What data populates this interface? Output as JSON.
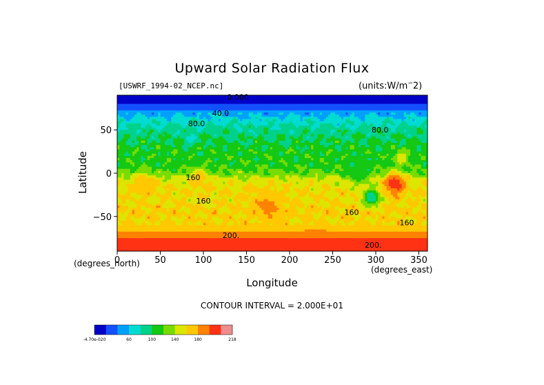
{
  "chart_data": {
    "type": "heatmap",
    "title": "Upward Solar Radiation Flux",
    "file_label": "[USWRF_1994-02_NCEP.nc]",
    "units_label": "(units:W/m^-2)",
    "xlabel": "Longitude",
    "ylabel": "Latitude",
    "x_unit_label": "(degrees_east)",
    "y_unit_label": "(degrees_north)",
    "xlim": [
      0,
      360
    ],
    "ylim": [
      -90,
      90
    ],
    "x_ticks": [
      0,
      50,
      100,
      150,
      200,
      250,
      300,
      350
    ],
    "y_ticks": [
      50,
      0,
      -50
    ],
    "x_tick_labels": [
      "0",
      "50",
      "100",
      "150",
      "200",
      "250",
      "300",
      "350"
    ],
    "y_tick_labels": [
      "50",
      "0",
      "−50"
    ],
    "contour_interval_text": "CONTOUR INTERVAL = 2.000E+01",
    "contour_labels": [
      {
        "text": "0.000",
        "lon": 140,
        "lat": 85
      },
      {
        "text": "40.0",
        "lon": 120,
        "lat": 66
      },
      {
        "text": "80.0",
        "lon": 92,
        "lat": 54
      },
      {
        "text": "80.0",
        "lon": 305,
        "lat": 47
      },
      {
        "text": "160",
        "lon": 88,
        "lat": -8
      },
      {
        "text": "160",
        "lon": 272,
        "lat": -48
      },
      {
        "text": "160",
        "lon": 336,
        "lat": -60
      },
      {
        "text": "160",
        "lon": 100,
        "lat": -35
      },
      {
        "text": "200.",
        "lon": 132,
        "lat": -75
      },
      {
        "text": "200.",
        "lon": 297,
        "lat": -86
      }
    ],
    "levels": [
      0,
      20,
      40,
      60,
      80,
      100,
      120,
      140,
      160,
      180,
      200,
      218
    ],
    "colorbar": {
      "tick_labels": [
        "-4.70e-020",
        "60",
        "100",
        "140",
        "180",
        "218"
      ],
      "colors": [
        "#0000c8",
        "#1450ff",
        "#00a0ff",
        "#00dcd2",
        "#00d28c",
        "#14c814",
        "#78dc00",
        "#dce600",
        "#ffc800",
        "#ff8200",
        "#ff3214",
        "#f08c8c"
      ]
    },
    "zonal_profile": [
      {
        "lat": 90,
        "value": 0
      },
      {
        "lat": 82,
        "value": 10
      },
      {
        "lat": 76,
        "value": 30
      },
      {
        "lat": 70,
        "value": 50
      },
      {
        "lat": 62,
        "value": 70
      },
      {
        "lat": 50,
        "value": 90
      },
      {
        "lat": 38,
        "value": 100
      },
      {
        "lat": 25,
        "value": 110
      },
      {
        "lat": 12,
        "value": 110
      },
      {
        "lat": 2,
        "value": 120
      },
      {
        "lat": -8,
        "value": 150
      },
      {
        "lat": -20,
        "value": 160
      },
      {
        "lat": -32,
        "value": 160
      },
      {
        "lat": -45,
        "value": 165
      },
      {
        "lat": -55,
        "value": 160
      },
      {
        "lat": -65,
        "value": 170
      },
      {
        "lat": -72,
        "value": 190
      },
      {
        "lat": -80,
        "value": 210
      },
      {
        "lat": -90,
        "value": 218
      }
    ],
    "features": [
      {
        "lon": 322,
        "lat": -12,
        "value": 218,
        "radius": 12
      },
      {
        "lon": 295,
        "lat": -28,
        "value": 80,
        "radius": 10
      },
      {
        "lon": 330,
        "lat": 18,
        "value": 160,
        "radius": 8
      },
      {
        "lon": 30,
        "lat": -12,
        "value": 180,
        "radius": 12
      },
      {
        "lon": 95,
        "lat": -5,
        "value": 175,
        "radius": 10
      },
      {
        "lon": 175,
        "lat": -38,
        "value": 185,
        "radius": 18
      },
      {
        "lon": 230,
        "lat": -80,
        "value": 200,
        "radius": 16
      },
      {
        "lon": 280,
        "lat": 2,
        "value": 100,
        "radius": 14
      },
      {
        "lon": 85,
        "lat": 40,
        "value": 75,
        "radius": 8
      }
    ]
  }
}
